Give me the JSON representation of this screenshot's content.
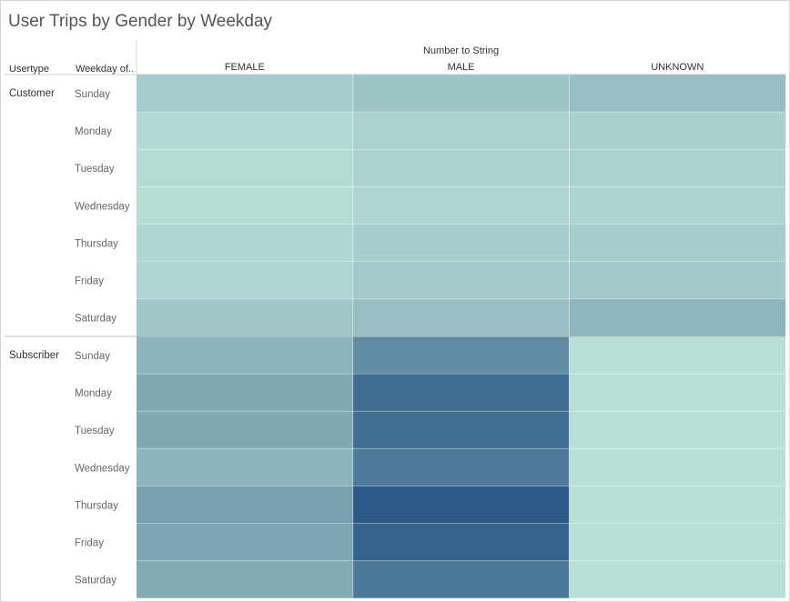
{
  "title": "User Trips by Gender by Weekday",
  "chart_data": {
    "type": "heatmap",
    "title": "User Trips by Gender by Weekday",
    "column_header": "Number to String",
    "row_headers": [
      "Usertype",
      "Weekday of.."
    ],
    "columns": [
      "FEMALE",
      "MALE",
      "UNKNOWN"
    ],
    "groups": [
      {
        "usertype": "Customer",
        "weekdays": [
          "Sunday",
          "Monday",
          "Tuesday",
          "Wednesday",
          "Thursday",
          "Friday",
          "Saturday"
        ],
        "values": [
          [
            0.17,
            0.22,
            0.26
          ],
          [
            0.07,
            0.13,
            0.14
          ],
          [
            0.06,
            0.12,
            0.13
          ],
          [
            0.05,
            0.1,
            0.11
          ],
          [
            0.08,
            0.15,
            0.16
          ],
          [
            0.1,
            0.18,
            0.19
          ],
          [
            0.2,
            0.26,
            0.33
          ]
        ]
      },
      {
        "usertype": "Subscriber",
        "weekdays": [
          "Sunday",
          "Monday",
          "Tuesday",
          "Wednesday",
          "Thursday",
          "Friday",
          "Saturday"
        ],
        "values": [
          [
            0.34,
            0.63,
            0.02
          ],
          [
            0.42,
            0.86,
            0.02
          ],
          [
            0.42,
            0.85,
            0.02
          ],
          [
            0.34,
            0.76,
            0.02
          ],
          [
            0.48,
            1.0,
            0.02
          ],
          [
            0.44,
            0.93,
            0.02
          ],
          [
            0.41,
            0.77,
            0.02
          ]
        ]
      }
    ],
    "color_scale": [
      "#bce3d9",
      "#2c5985"
    ],
    "legend": "none"
  }
}
